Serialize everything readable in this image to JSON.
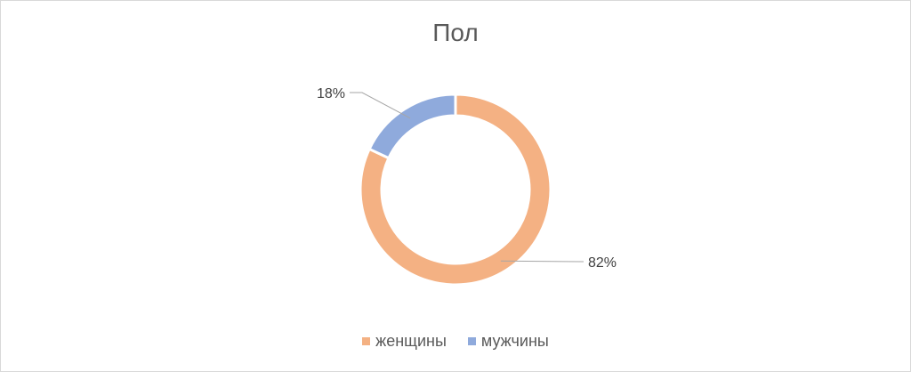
{
  "chart_data": {
    "type": "pie",
    "title": "Пол",
    "categories": [
      "женщины",
      "мужчины"
    ],
    "values": [
      82,
      18
    ],
    "data_labels": [
      "82%",
      "18%"
    ],
    "colors": [
      "#f4b183",
      "#8faadc"
    ],
    "donut": true,
    "legend_position": "bottom"
  }
}
